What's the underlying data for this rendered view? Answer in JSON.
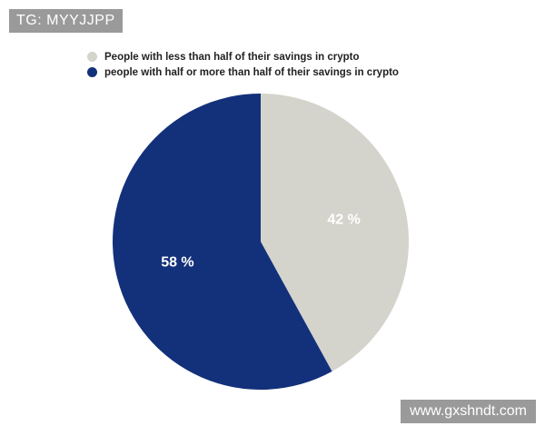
{
  "watermarks": {
    "top": "TG: MYYJJPP",
    "bottom": "www.gxshndt.com"
  },
  "colors": {
    "less_than_half": "#d4d4cc",
    "half_or_more": "#13307a"
  },
  "chart_data": {
    "type": "pie",
    "title": "",
    "categories": [
      "People with less than half of their savings in crypto",
      "people with half or more than half of their savings in crypto"
    ],
    "values": [
      42,
      58
    ],
    "labels": [
      "42 %",
      "58 %"
    ],
    "colors": [
      "#d4d4cc",
      "#13307a"
    ],
    "start_angle": "12 o'clock, clockwise",
    "legend": "top-left"
  }
}
